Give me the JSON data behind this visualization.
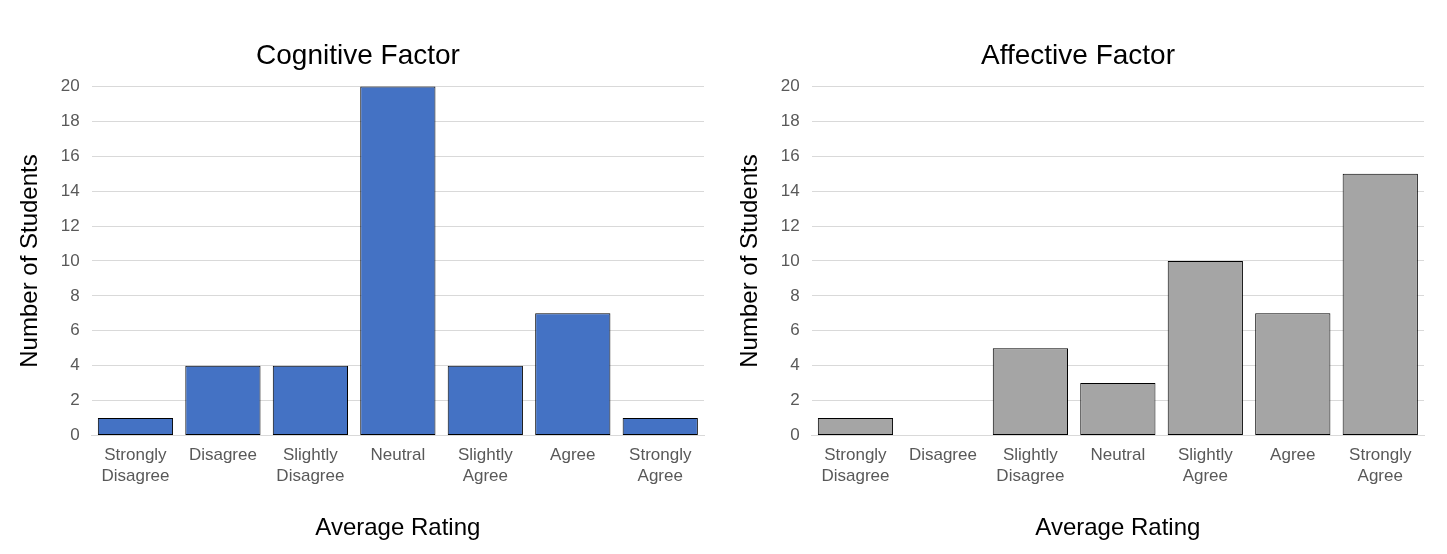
{
  "chart_data": [
    {
      "type": "bar",
      "title": "Cognitive Factor",
      "xlabel": "Average Rating",
      "ylabel": "Number of Students",
      "categories": [
        "Strongly Disagree",
        "Disagree",
        "Slightly Disagree",
        "Neutral",
        "Slightly Agree",
        "Agree",
        "Strongly Agree"
      ],
      "values": [
        1,
        4,
        4,
        20,
        4,
        7,
        1
      ],
      "color": "#4472c4",
      "ylim": [
        0,
        20
      ],
      "yticks": [
        0,
        2,
        4,
        6,
        8,
        10,
        12,
        14,
        16,
        18,
        20
      ],
      "grid": "y"
    },
    {
      "type": "bar",
      "title": "Affective Factor",
      "xlabel": "Average Rating",
      "ylabel": "Number of Students",
      "categories": [
        "Strongly Disagree",
        "Disagree",
        "Slightly Disagree",
        "Neutral",
        "Slightly Agree",
        "Agree",
        "Strongly Agree"
      ],
      "values": [
        1,
        0,
        5,
        3,
        10,
        7,
        15
      ],
      "color": "#a5a5a5",
      "ylim": [
        0,
        20
      ],
      "yticks": [
        0,
        2,
        4,
        6,
        8,
        10,
        12,
        14,
        16,
        18,
        20
      ],
      "grid": "y"
    }
  ]
}
